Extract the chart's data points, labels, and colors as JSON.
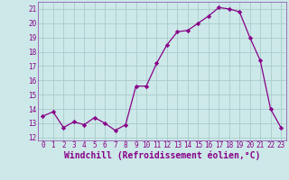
{
  "x": [
    0,
    1,
    2,
    3,
    4,
    5,
    6,
    7,
    8,
    9,
    10,
    11,
    12,
    13,
    14,
    15,
    16,
    17,
    18,
    19,
    20,
    21,
    22,
    23
  ],
  "y": [
    13.5,
    13.8,
    12.7,
    13.1,
    12.9,
    13.4,
    13.0,
    12.5,
    12.9,
    15.6,
    15.6,
    17.2,
    18.5,
    19.4,
    19.5,
    20.0,
    20.5,
    21.1,
    21.0,
    20.8,
    19.0,
    17.4,
    14.0,
    12.7
  ],
  "line_color": "#880088",
  "marker": "D",
  "marker_size": 2.2,
  "bg_color": "#cce8e8",
  "grid_color": "#aacccc",
  "xlabel": "Windchill (Refroidissement éolien,°C)",
  "xlim": [
    -0.5,
    23.5
  ],
  "ylim": [
    11.8,
    21.5
  ],
  "yticks": [
    12,
    13,
    14,
    15,
    16,
    17,
    18,
    19,
    20,
    21
  ],
  "xticks": [
    0,
    1,
    2,
    3,
    4,
    5,
    6,
    7,
    8,
    9,
    10,
    11,
    12,
    13,
    14,
    15,
    16,
    17,
    18,
    19,
    20,
    21,
    22,
    23
  ],
  "tick_labelsize": 5.5,
  "xlabel_fontsize": 7.0,
  "label_color": "#880088",
  "spine_color": "#8844aa",
  "linewidth": 0.9
}
